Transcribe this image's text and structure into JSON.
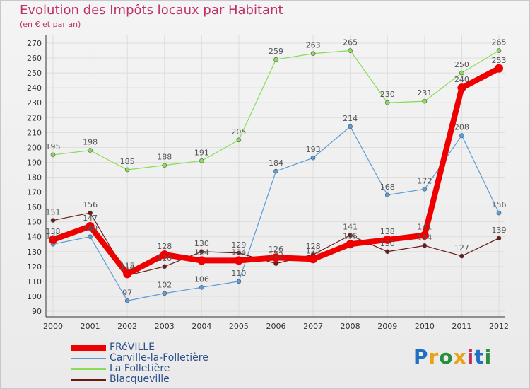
{
  "title": "Evolution des Impôts locaux par Habitant",
  "subtitle": "(en € et par an)",
  "logo": "Proxiti",
  "chart_data": {
    "type": "line",
    "title": "Evolution des Impôts locaux par Habitant",
    "subtitle": "(en € et par an)",
    "xlabel": "",
    "ylabel": "",
    "x": [
      "2000",
      "2001",
      "2002",
      "2003",
      "2004",
      "2005",
      "2006",
      "2007",
      "2008",
      "2009",
      "2010",
      "2011",
      "2012"
    ],
    "ylim": [
      90,
      270
    ],
    "yticks": [
      90,
      100,
      110,
      120,
      130,
      140,
      150,
      160,
      170,
      180,
      190,
      200,
      210,
      220,
      230,
      240,
      250,
      260,
      270
    ],
    "grid": true,
    "legend_position": "bottom-left",
    "series": [
      {
        "name": "FRéVILLE",
        "color": "#ee0000",
        "values": [
          138,
          147,
          115,
          128,
          124,
          124,
          126,
          125,
          135,
          138,
          141,
          240,
          253
        ]
      },
      {
        "name": "Carville-la-Folletière",
        "color": "#5b9bd5",
        "values": [
          135,
          140,
          97,
          102,
          106,
          110,
          184,
          193,
          214,
          168,
          172,
          208,
          156
        ]
      },
      {
        "name": "La Folletière",
        "color": "#88dd55",
        "values": [
          195,
          198,
          185,
          188,
          191,
          205,
          259,
          263,
          265,
          230,
          231,
          250,
          265
        ]
      },
      {
        "name": "Blacqueville",
        "color": "#6b1a1a",
        "values": [
          151,
          156,
          114,
          120,
          130,
          129,
          122,
          128,
          141,
          130,
          134,
          127,
          139
        ]
      }
    ]
  }
}
